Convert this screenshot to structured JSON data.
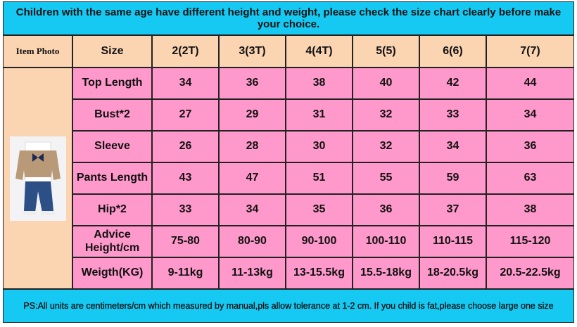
{
  "header": {
    "notice": "Children with the same age have different height and weight, please check the size chart clearly before make your choice."
  },
  "table": {
    "photo_header": "Item Photo",
    "columns": [
      "Size",
      "2(2T)",
      "3(3T)",
      "4(4T)",
      "5(5)",
      "6(6)",
      "7(7)"
    ],
    "rows": [
      [
        "Top Length",
        "34",
        "36",
        "38",
        "40",
        "42",
        "44"
      ],
      [
        "Bust*2",
        "27",
        "29",
        "31",
        "32",
        "33",
        "34"
      ],
      [
        "Sleeve",
        "26",
        "28",
        "30",
        "32",
        "34",
        "36"
      ],
      [
        "Pants Length",
        "43",
        "47",
        "51",
        "55",
        "59",
        "63"
      ],
      [
        "Hip*2",
        "33",
        "34",
        "35",
        "36",
        "37",
        "38"
      ],
      [
        "Advice Height/cm",
        "75-80",
        "80-90",
        "90-100",
        "100-110",
        "110-115",
        "115-120"
      ],
      [
        "Weigth(KG)",
        "9-11kg",
        "11-13kg",
        "13-15.5kg",
        "15.5-18kg",
        "18-20.5kg",
        "20.5-22.5kg"
      ]
    ]
  },
  "footer": {
    "note": "PS:All units are centimeters/cm which measured by manual,pls allow tolerance at 1-2 cm. If you child is fat,please choose large one size"
  }
}
